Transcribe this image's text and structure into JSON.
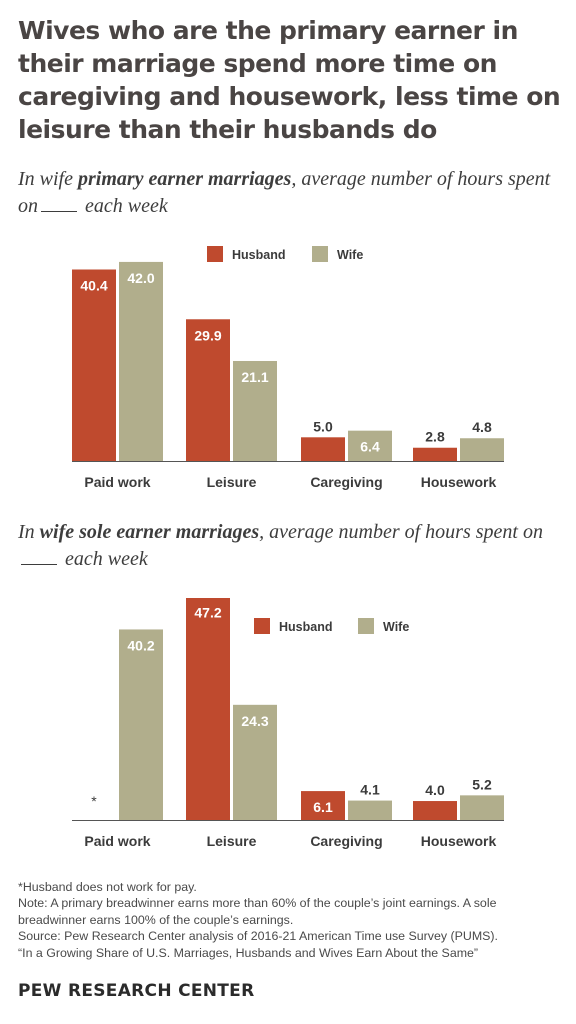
{
  "title": "Wives who are the primary earner in their marriage spend more time on caregiving and housework, less time on leisure than their husbands do",
  "colors": {
    "husband": "#bf4a2e",
    "wife": "#b1ae8c",
    "axis": "#555555"
  },
  "chart_data": [
    {
      "type": "bar",
      "subtitle": {
        "part1": "In wife ",
        "bold": "primary earner marriages",
        "part2": ", average number of hours spent on",
        "part3": "each week"
      },
      "categories": [
        "Paid work",
        "Leisure",
        "Caregiving",
        "Housework"
      ],
      "series": [
        {
          "name": "Husband",
          "values": [
            40.4,
            29.9,
            5.0,
            2.8
          ],
          "labels": [
            "40.4",
            "29.9",
            "5.0",
            "2.8"
          ]
        },
        {
          "name": "Wife",
          "values": [
            42.0,
            21.1,
            6.4,
            4.8
          ],
          "labels": [
            "42.0",
            "21.1",
            "6.4",
            "4.8"
          ]
        }
      ],
      "ylim": [
        0,
        42
      ],
      "legend": "top-center"
    },
    {
      "type": "bar",
      "subtitle": {
        "part1": "In ",
        "bold": "wife sole earner marriages",
        "part2": ", average number of hours spent on",
        "part3": "each week"
      },
      "categories": [
        "Paid work",
        "Leisure",
        "Caregiving",
        "Housework"
      ],
      "series": [
        {
          "name": "Husband",
          "values": [
            null,
            47.2,
            6.1,
            4.0
          ],
          "labels": [
            "*",
            "47.2",
            "6.1",
            "4.0"
          ]
        },
        {
          "name": "Wife",
          "values": [
            40.2,
            24.3,
            4.1,
            5.2
          ],
          "labels": [
            "40.2",
            "24.3",
            "4.1",
            "5.2"
          ]
        }
      ],
      "ylim": [
        0,
        47.2
      ],
      "legend": "top-right"
    }
  ],
  "footnotes": {
    "asterisk": "*Husband does not work for pay.",
    "note": "Note: A primary breadwinner earns more than 60% of the couple’s joint earnings. A sole breadwinner earns 100% of the couple’s earnings.",
    "source": "Source: Pew Research Center analysis of 2016-21 American Time use Survey (PUMS).",
    "report": "“In a Growing Share of U.S. Marriages, Husbands and Wives Earn About the Same”"
  },
  "brand": "PEW RESEARCH CENTER"
}
